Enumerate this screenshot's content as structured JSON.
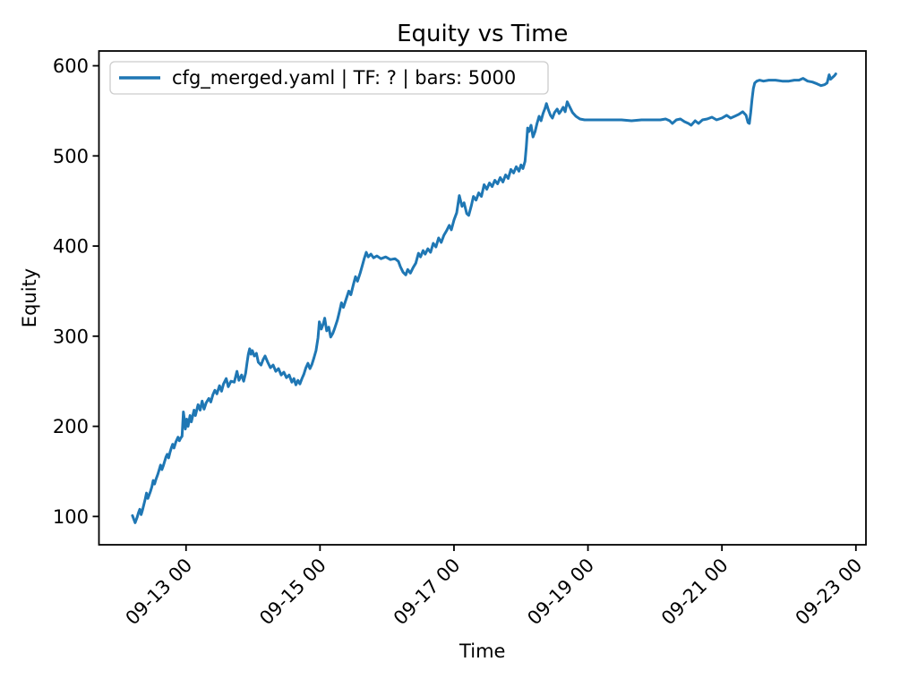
{
  "figure": {
    "background": "#ffffff"
  },
  "chart_data": {
    "type": "line",
    "title": "Equity vs Time",
    "xlabel": "Time",
    "ylabel": "Equity",
    "grid": false,
    "x_axis": {
      "unit": "days since 09-12 00:00",
      "lim": [
        -0.3,
        11.15
      ],
      "tick_rotation_deg": 45,
      "ticks": [
        {
          "value": 1,
          "label": "09-13 00"
        },
        {
          "value": 3,
          "label": "09-15 00"
        },
        {
          "value": 5,
          "label": "09-17 00"
        },
        {
          "value": 7,
          "label": "09-19 00"
        },
        {
          "value": 9,
          "label": "09-21 00"
        },
        {
          "value": 11,
          "label": "09-23 00"
        }
      ]
    },
    "y_axis": {
      "lim": [
        68.6,
        616.4
      ],
      "ticks": [
        100,
        200,
        300,
        400,
        500,
        600
      ]
    },
    "legend": {
      "position": "upper left",
      "entries": [
        {
          "label": "cfg_merged.yaml | TF: ? | bars: 5000",
          "color": "#1f77b4"
        }
      ]
    },
    "series": [
      {
        "name": "cfg_merged.yaml | TF: ? | bars: 5000",
        "color": "#1f77b4",
        "line_width": 3,
        "points": [
          [
            0.2,
            101
          ],
          [
            0.22,
            97
          ],
          [
            0.24,
            93
          ],
          [
            0.27,
            99
          ],
          [
            0.29,
            104
          ],
          [
            0.31,
            108
          ],
          [
            0.33,
            102
          ],
          [
            0.35,
            107
          ],
          [
            0.37,
            113
          ],
          [
            0.39,
            119
          ],
          [
            0.41,
            126
          ],
          [
            0.43,
            120
          ],
          [
            0.45,
            124
          ],
          [
            0.47,
            128
          ],
          [
            0.49,
            133
          ],
          [
            0.51,
            140
          ],
          [
            0.53,
            136
          ],
          [
            0.55,
            141
          ],
          [
            0.58,
            147
          ],
          [
            0.6,
            152
          ],
          [
            0.62,
            157
          ],
          [
            0.64,
            152
          ],
          [
            0.66,
            156
          ],
          [
            0.68,
            161
          ],
          [
            0.7,
            166
          ],
          [
            0.72,
            169
          ],
          [
            0.74,
            165
          ],
          [
            0.76,
            171
          ],
          [
            0.78,
            176
          ],
          [
            0.8,
            180
          ],
          [
            0.82,
            176
          ],
          [
            0.85,
            183
          ],
          [
            0.88,
            188
          ],
          [
            0.9,
            184
          ],
          [
            0.92,
            187
          ],
          [
            0.94,
            189
          ],
          [
            0.96,
            216
          ],
          [
            0.98,
            205
          ],
          [
            0.99,
            197
          ],
          [
            1.01,
            208
          ],
          [
            1.03,
            200
          ],
          [
            1.06,
            212
          ],
          [
            1.08,
            205
          ],
          [
            1.12,
            218
          ],
          [
            1.14,
            212
          ],
          [
            1.18,
            224
          ],
          [
            1.21,
            218
          ],
          [
            1.24,
            228
          ],
          [
            1.27,
            219
          ],
          [
            1.3,
            226
          ],
          [
            1.34,
            231
          ],
          [
            1.37,
            227
          ],
          [
            1.4,
            235
          ],
          [
            1.43,
            240
          ],
          [
            1.46,
            236
          ],
          [
            1.5,
            245
          ],
          [
            1.53,
            239
          ],
          [
            1.56,
            247
          ],
          [
            1.6,
            253
          ],
          [
            1.63,
            244
          ],
          [
            1.67,
            250
          ],
          [
            1.72,
            249
          ],
          [
            1.76,
            261
          ],
          [
            1.79,
            251
          ],
          [
            1.83,
            257
          ],
          [
            1.86,
            250
          ],
          [
            1.89,
            259
          ],
          [
            1.91,
            270
          ],
          [
            1.93,
            280
          ],
          [
            1.95,
            286
          ],
          [
            1.97,
            280
          ],
          [
            1.99,
            284
          ],
          [
            2.02,
            278
          ],
          [
            2.05,
            281
          ],
          [
            2.08,
            271
          ],
          [
            2.12,
            268
          ],
          [
            2.15,
            274
          ],
          [
            2.18,
            278
          ],
          [
            2.22,
            271
          ],
          [
            2.26,
            265
          ],
          [
            2.3,
            268
          ],
          [
            2.34,
            261
          ],
          [
            2.38,
            264
          ],
          [
            2.42,
            257
          ],
          [
            2.46,
            260
          ],
          [
            2.5,
            254
          ],
          [
            2.54,
            257
          ],
          [
            2.58,
            249
          ],
          [
            2.61,
            253
          ],
          [
            2.64,
            246
          ],
          [
            2.67,
            251
          ],
          [
            2.7,
            247
          ],
          [
            2.73,
            253
          ],
          [
            2.76,
            258
          ],
          [
            2.79,
            265
          ],
          [
            2.82,
            270
          ],
          [
            2.85,
            264
          ],
          [
            2.88,
            269
          ],
          [
            2.91,
            276
          ],
          [
            2.94,
            284
          ],
          [
            2.97,
            298
          ],
          [
            2.99,
            316
          ],
          [
            3.02,
            308
          ],
          [
            3.05,
            314
          ],
          [
            3.07,
            320
          ],
          [
            3.1,
            306
          ],
          [
            3.13,
            310
          ],
          [
            3.16,
            299
          ],
          [
            3.19,
            303
          ],
          [
            3.22,
            309
          ],
          [
            3.26,
            318
          ],
          [
            3.29,
            327
          ],
          [
            3.32,
            337
          ],
          [
            3.35,
            332
          ],
          [
            3.39,
            341
          ],
          [
            3.43,
            350
          ],
          [
            3.46,
            346
          ],
          [
            3.5,
            358
          ],
          [
            3.53,
            366
          ],
          [
            3.56,
            361
          ],
          [
            3.6,
            370
          ],
          [
            3.63,
            378
          ],
          [
            3.66,
            386
          ],
          [
            3.69,
            393
          ],
          [
            3.72,
            388
          ],
          [
            3.76,
            391
          ],
          [
            3.8,
            387
          ],
          [
            3.85,
            389
          ],
          [
            3.91,
            386
          ],
          [
            3.98,
            388
          ],
          [
            4.05,
            385
          ],
          [
            4.12,
            386
          ],
          [
            4.17,
            383
          ],
          [
            4.2,
            377
          ],
          [
            4.24,
            371
          ],
          [
            4.28,
            368
          ],
          [
            4.31,
            374
          ],
          [
            4.35,
            370
          ],
          [
            4.39,
            376
          ],
          [
            4.43,
            381
          ],
          [
            4.47,
            392
          ],
          [
            4.5,
            388
          ],
          [
            4.54,
            395
          ],
          [
            4.57,
            391
          ],
          [
            4.61,
            397
          ],
          [
            4.65,
            393
          ],
          [
            4.69,
            403
          ],
          [
            4.73,
            399
          ],
          [
            4.77,
            409
          ],
          [
            4.81,
            404
          ],
          [
            4.85,
            412
          ],
          [
            4.89,
            417
          ],
          [
            4.93,
            423
          ],
          [
            4.96,
            418
          ],
          [
            5.0,
            429
          ],
          [
            5.04,
            437
          ],
          [
            5.08,
            456
          ],
          [
            5.12,
            444
          ],
          [
            5.15,
            448
          ],
          [
            5.19,
            436
          ],
          [
            5.22,
            434
          ],
          [
            5.26,
            445
          ],
          [
            5.29,
            455
          ],
          [
            5.33,
            451
          ],
          [
            5.37,
            459
          ],
          [
            5.41,
            455
          ],
          [
            5.45,
            468
          ],
          [
            5.49,
            463
          ],
          [
            5.53,
            470
          ],
          [
            5.57,
            466
          ],
          [
            5.61,
            473
          ],
          [
            5.65,
            469
          ],
          [
            5.69,
            476
          ],
          [
            5.73,
            471
          ],
          [
            5.77,
            479
          ],
          [
            5.81,
            475
          ],
          [
            5.85,
            485
          ],
          [
            5.89,
            481
          ],
          [
            5.93,
            488
          ],
          [
            5.97,
            483
          ],
          [
            6.0,
            490
          ],
          [
            6.03,
            486
          ],
          [
            6.06,
            494
          ],
          [
            6.08,
            510
          ],
          [
            6.1,
            531
          ],
          [
            6.12,
            527
          ],
          [
            6.15,
            534
          ],
          [
            6.18,
            521
          ],
          [
            6.21,
            527
          ],
          [
            6.24,
            536
          ],
          [
            6.27,
            544
          ],
          [
            6.3,
            539
          ],
          [
            6.33,
            547
          ],
          [
            6.36,
            553
          ],
          [
            6.38,
            558
          ],
          [
            6.41,
            551
          ],
          [
            6.44,
            545
          ],
          [
            6.47,
            542
          ],
          [
            6.5,
            548
          ],
          [
            6.54,
            552
          ],
          [
            6.57,
            547
          ],
          [
            6.6,
            550
          ],
          [
            6.63,
            554
          ],
          [
            6.66,
            549
          ],
          [
            6.69,
            560
          ],
          [
            6.73,
            554
          ],
          [
            6.77,
            548
          ],
          [
            6.82,
            544
          ],
          [
            6.88,
            541
          ],
          [
            6.95,
            540
          ],
          [
            7.05,
            540
          ],
          [
            7.2,
            540
          ],
          [
            7.35,
            540
          ],
          [
            7.5,
            540
          ],
          [
            7.65,
            539
          ],
          [
            7.8,
            540
          ],
          [
            7.95,
            540
          ],
          [
            8.08,
            540
          ],
          [
            8.16,
            541
          ],
          [
            8.22,
            539
          ],
          [
            8.26,
            536
          ],
          [
            8.32,
            540
          ],
          [
            8.38,
            541
          ],
          [
            8.44,
            538
          ],
          [
            8.5,
            536
          ],
          [
            8.54,
            534
          ],
          [
            8.6,
            539
          ],
          [
            8.65,
            536
          ],
          [
            8.71,
            540
          ],
          [
            8.78,
            541
          ],
          [
            8.85,
            543
          ],
          [
            8.92,
            540
          ],
          [
            9.0,
            542
          ],
          [
            9.07,
            545
          ],
          [
            9.13,
            542
          ],
          [
            9.19,
            544
          ],
          [
            9.25,
            546
          ],
          [
            9.31,
            549
          ],
          [
            9.36,
            545
          ],
          [
            9.39,
            537
          ],
          [
            9.41,
            536
          ],
          [
            9.43,
            548
          ],
          [
            9.45,
            563
          ],
          [
            9.47,
            575
          ],
          [
            9.49,
            581
          ],
          [
            9.52,
            583
          ],
          [
            9.56,
            584
          ],
          [
            9.62,
            583
          ],
          [
            9.7,
            584
          ],
          [
            9.8,
            584
          ],
          [
            9.9,
            583
          ],
          [
            10.0,
            583
          ],
          [
            10.08,
            584
          ],
          [
            10.15,
            584
          ],
          [
            10.21,
            586
          ],
          [
            10.28,
            583
          ],
          [
            10.35,
            582
          ],
          [
            10.42,
            580
          ],
          [
            10.48,
            578
          ],
          [
            10.53,
            579
          ],
          [
            10.57,
            581
          ],
          [
            10.6,
            590
          ],
          [
            10.62,
            585
          ],
          [
            10.65,
            587
          ],
          [
            10.68,
            589
          ],
          [
            10.7,
            591
          ]
        ]
      }
    ]
  }
}
